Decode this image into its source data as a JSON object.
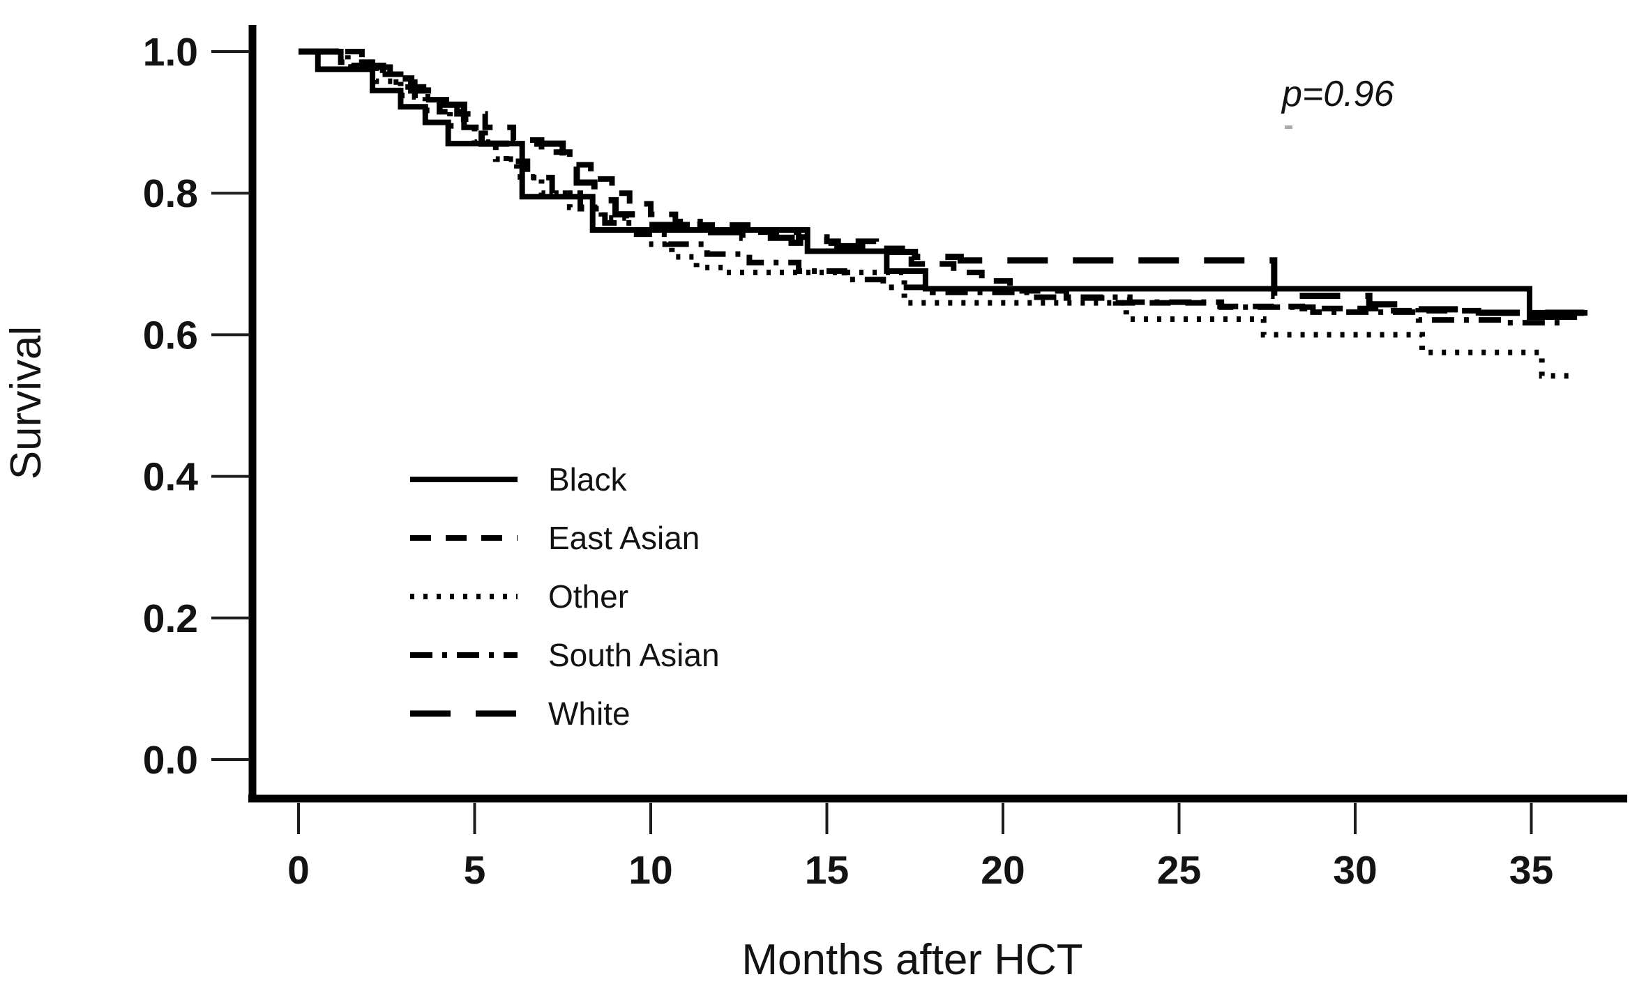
{
  "figure": {
    "background": "#ffffff",
    "line_color": "#000000",
    "text_color": "#131313"
  },
  "annotation": {
    "p_value": "p=0.96"
  },
  "axes": {
    "ylabel": "Survival",
    "xlabel": "Months after HCT",
    "x_tick_labels": [
      "0",
      "5",
      "10",
      "15",
      "20",
      "25",
      "30",
      "35"
    ],
    "y_tick_labels": [
      "1.0",
      "0.8",
      "0.6",
      "0.4",
      "0.2",
      "0.0"
    ]
  },
  "chart_data": {
    "type": "line",
    "subtype": "kaplan_meier_step",
    "title": "",
    "xlabel": "Months after HCT",
    "ylabel": "Survival",
    "xlim": [
      0,
      37.5
    ],
    "ylim": [
      0.0,
      1.05
    ],
    "x_ticks": [
      0,
      5,
      10,
      15,
      20,
      25,
      30,
      35
    ],
    "y_ticks": [
      1.0,
      0.8,
      0.6,
      0.4,
      0.2,
      0.0
    ],
    "grid": false,
    "legend_position": "inside-left-middle",
    "annotations": [
      {
        "text": "p=0.96",
        "x_months": 27.9,
        "y_survival": 0.94
      }
    ],
    "series": [
      {
        "name": "Black",
        "line_style": "solid",
        "color": "#000000",
        "points": [
          [
            0,
            1.0
          ],
          [
            0.55,
            0.975
          ],
          [
            2.1,
            0.945
          ],
          [
            2.9,
            0.922
          ],
          [
            3.6,
            0.9
          ],
          [
            4.25,
            0.87
          ],
          [
            6.35,
            0.795
          ],
          [
            8.35,
            0.748
          ],
          [
            14.45,
            0.718
          ],
          [
            16.7,
            0.69
          ],
          [
            17.8,
            0.665
          ],
          [
            34.95,
            0.625
          ],
          [
            36.3,
            0.625
          ]
        ]
      },
      {
        "name": "East Asian",
        "line_style": "dashed",
        "color": "#000000",
        "points": [
          [
            0,
            1.0
          ],
          [
            1.2,
            0.985
          ],
          [
            2.1,
            0.968
          ],
          [
            2.9,
            0.95
          ],
          [
            3.7,
            0.932
          ],
          [
            4.5,
            0.912
          ],
          [
            5.3,
            0.893
          ],
          [
            6.1,
            0.875
          ],
          [
            6.9,
            0.858
          ],
          [
            7.7,
            0.84
          ],
          [
            8.3,
            0.82
          ],
          [
            8.9,
            0.8
          ],
          [
            9.4,
            0.785
          ],
          [
            10.0,
            0.77
          ],
          [
            10.7,
            0.76
          ],
          [
            11.4,
            0.755
          ],
          [
            13.0,
            0.745
          ],
          [
            14.2,
            0.738
          ],
          [
            15.0,
            0.732
          ],
          [
            16.4,
            0.722
          ],
          [
            17.4,
            0.7
          ],
          [
            18.6,
            0.688
          ],
          [
            19.4,
            0.676
          ],
          [
            20.2,
            0.662
          ],
          [
            21.8,
            0.652
          ],
          [
            23.2,
            0.645
          ],
          [
            26.0,
            0.64
          ],
          [
            28.5,
            0.637
          ],
          [
            31.0,
            0.634
          ],
          [
            33.5,
            0.631
          ],
          [
            36.9,
            0.631
          ]
        ]
      },
      {
        "name": "Other",
        "line_style": "dotted",
        "color": "#000000",
        "points": [
          [
            0,
            1.0
          ],
          [
            1.4,
            0.978
          ],
          [
            2.2,
            0.958
          ],
          [
            2.9,
            0.938
          ],
          [
            3.6,
            0.917
          ],
          [
            4.3,
            0.895
          ],
          [
            5.0,
            0.872
          ],
          [
            5.6,
            0.848
          ],
          [
            6.2,
            0.823
          ],
          [
            6.9,
            0.8
          ],
          [
            7.7,
            0.78
          ],
          [
            8.6,
            0.765
          ],
          [
            9.3,
            0.745
          ],
          [
            9.9,
            0.728
          ],
          [
            10.6,
            0.71
          ],
          [
            11.3,
            0.695
          ],
          [
            12.1,
            0.688
          ],
          [
            17.2,
            0.645
          ],
          [
            23.5,
            0.622
          ],
          [
            27.4,
            0.6
          ],
          [
            31.9,
            0.575
          ],
          [
            35.3,
            0.542
          ],
          [
            36.1,
            0.542
          ]
        ]
      },
      {
        "name": "South Asian",
        "line_style": "dash-dot",
        "color": "#000000",
        "points": [
          [
            0,
            1.0
          ],
          [
            1.8,
            0.978
          ],
          [
            2.6,
            0.957
          ],
          [
            3.3,
            0.936
          ],
          [
            4.0,
            0.915
          ],
          [
            4.7,
            0.893
          ],
          [
            5.3,
            0.87
          ],
          [
            5.9,
            0.845
          ],
          [
            6.5,
            0.822
          ],
          [
            7.2,
            0.8
          ],
          [
            8.0,
            0.778
          ],
          [
            8.7,
            0.758
          ],
          [
            9.6,
            0.742
          ],
          [
            10.5,
            0.728
          ],
          [
            11.6,
            0.714
          ],
          [
            12.8,
            0.702
          ],
          [
            14.2,
            0.69
          ],
          [
            15.5,
            0.678
          ],
          [
            16.6,
            0.667
          ],
          [
            18.0,
            0.66
          ],
          [
            20.8,
            0.653
          ],
          [
            23.6,
            0.646
          ],
          [
            26.2,
            0.639
          ],
          [
            28.8,
            0.632
          ],
          [
            31.8,
            0.621
          ],
          [
            34.2,
            0.617
          ],
          [
            36.0,
            0.617
          ]
        ]
      },
      {
        "name": "White",
        "line_style": "long-dash",
        "color": "#000000",
        "points": [
          [
            0,
            1.0
          ],
          [
            1.5,
            0.98
          ],
          [
            2.4,
            0.962
          ],
          [
            3.2,
            0.945
          ],
          [
            4.0,
            0.925
          ],
          [
            4.7,
            0.905
          ],
          [
            5.2,
            0.87
          ],
          [
            7.5,
            0.845
          ],
          [
            7.9,
            0.815
          ],
          [
            8.4,
            0.79
          ],
          [
            9.0,
            0.77
          ],
          [
            9.8,
            0.755
          ],
          [
            11.5,
            0.745
          ],
          [
            12.6,
            0.737
          ],
          [
            14.0,
            0.73
          ],
          [
            15.3,
            0.725
          ],
          [
            16.5,
            0.717
          ],
          [
            17.5,
            0.71
          ],
          [
            18.8,
            0.705
          ],
          [
            27.7,
            0.655
          ],
          [
            30.4,
            0.643
          ],
          [
            31.8,
            0.636
          ],
          [
            33.2,
            0.631
          ],
          [
            36.5,
            0.631
          ]
        ]
      }
    ]
  }
}
